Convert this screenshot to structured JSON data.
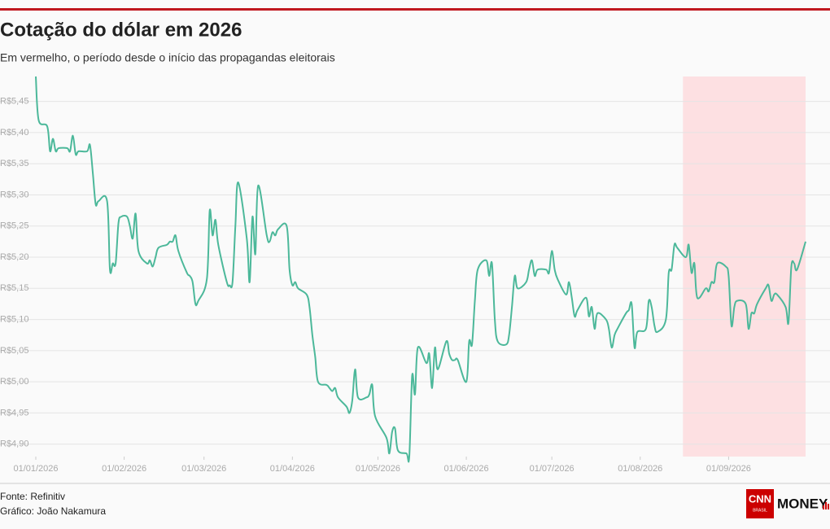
{
  "chart_data": {
    "type": "line",
    "title": "Cotação do dólar em 2026",
    "subtitle": "Em vermelho, o período desde o início das propagandas eleitorais",
    "x": [
      "2026-01-01",
      "2026-01-02",
      "2026-01-05",
      "2026-01-06",
      "2026-01-07",
      "2026-01-08",
      "2026-01-09",
      "2026-01-12",
      "2026-01-13",
      "2026-01-14",
      "2026-01-15",
      "2026-01-16",
      "2026-01-19",
      "2026-01-20",
      "2026-01-21",
      "2026-01-22",
      "2026-01-23",
      "2026-01-26",
      "2026-01-27",
      "2026-01-28",
      "2026-01-29",
      "2026-01-30",
      "2026-01-31",
      "2026-02-02",
      "2026-02-03",
      "2026-02-04",
      "2026-02-05",
      "2026-02-06",
      "2026-02-09",
      "2026-02-10",
      "2026-02-11",
      "2026-02-12",
      "2026-02-13",
      "2026-02-16",
      "2026-02-17",
      "2026-02-18",
      "2026-02-19",
      "2026-02-20",
      "2026-02-23",
      "2026-02-24",
      "2026-02-25",
      "2026-02-26",
      "2026-02-27",
      "2026-03-02",
      "2026-03-03",
      "2026-03-04",
      "2026-03-05",
      "2026-03-06",
      "2026-03-09",
      "2026-03-10",
      "2026-03-11",
      "2026-03-12",
      "2026-03-13",
      "2026-03-16",
      "2026-03-17",
      "2026-03-18",
      "2026-03-19",
      "2026-03-20",
      "2026-03-23",
      "2026-03-24",
      "2026-03-25",
      "2026-03-26",
      "2026-03-27",
      "2026-03-30",
      "2026-03-31",
      "2026-04-01",
      "2026-04-02",
      "2026-04-03",
      "2026-04-06",
      "2026-04-07",
      "2026-04-08",
      "2026-04-09",
      "2026-04-10",
      "2026-04-13",
      "2026-04-14",
      "2026-04-15",
      "2026-04-16",
      "2026-04-17",
      "2026-04-20",
      "2026-04-21",
      "2026-04-22",
      "2026-04-23",
      "2026-04-24",
      "2026-04-27",
      "2026-04-28",
      "2026-04-29",
      "2026-04-30",
      "2026-05-04",
      "2026-05-05",
      "2026-05-06",
      "2026-05-07",
      "2026-05-08",
      "2026-05-11",
      "2026-05-12",
      "2026-05-13",
      "2026-05-14",
      "2026-05-15",
      "2026-05-18",
      "2026-05-19",
      "2026-05-20",
      "2026-05-21",
      "2026-05-22",
      "2026-05-25",
      "2026-05-26",
      "2026-05-27",
      "2026-05-28",
      "2026-05-29",
      "2026-06-01",
      "2026-06-02",
      "2026-06-03",
      "2026-06-04",
      "2026-06-05",
      "2026-06-08",
      "2026-06-09",
      "2026-06-10",
      "2026-06-11",
      "2026-06-12",
      "2026-06-15",
      "2026-06-16",
      "2026-06-17",
      "2026-06-18",
      "2026-06-19",
      "2026-06-22",
      "2026-06-23",
      "2026-06-24",
      "2026-06-25",
      "2026-06-26",
      "2026-06-29",
      "2026-06-30",
      "2026-07-01",
      "2026-07-02",
      "2026-07-03",
      "2026-07-06",
      "2026-07-07",
      "2026-07-08",
      "2026-07-09",
      "2026-07-10",
      "2026-07-13",
      "2026-07-14",
      "2026-07-15",
      "2026-07-16",
      "2026-07-17",
      "2026-07-20",
      "2026-07-21",
      "2026-07-22",
      "2026-07-23",
      "2026-07-24",
      "2026-07-27",
      "2026-07-28",
      "2026-07-29",
      "2026-07-30",
      "2026-07-31",
      "2026-08-03",
      "2026-08-04",
      "2026-08-05",
      "2026-08-06",
      "2026-08-07",
      "2026-08-10",
      "2026-08-11",
      "2026-08-12",
      "2026-08-13",
      "2026-08-14",
      "2026-08-17",
      "2026-08-18",
      "2026-08-19",
      "2026-08-20",
      "2026-08-21",
      "2026-08-24",
      "2026-08-25",
      "2026-08-26",
      "2026-08-27",
      "2026-08-28",
      "2026-08-31",
      "2026-09-01",
      "2026-09-02",
      "2026-09-03",
      "2026-09-04",
      "2026-09-07",
      "2026-09-08",
      "2026-09-09",
      "2026-09-10",
      "2026-09-11",
      "2026-09-14",
      "2026-09-15",
      "2026-09-16",
      "2026-09-17",
      "2026-09-18",
      "2026-09-21",
      "2026-09-22",
      "2026-09-23",
      "2026-09-24",
      "2026-09-25",
      "2026-09-28"
    ],
    "series": [
      {
        "color": "#4cb89a",
        "values": [
          5.49,
          5.42,
          5.41,
          5.37,
          5.39,
          5.37,
          5.375,
          5.375,
          5.37,
          5.395,
          5.365,
          5.37,
          5.37,
          5.38,
          5.335,
          5.285,
          5.29,
          5.29,
          5.18,
          5.19,
          5.19,
          5.255,
          5.265,
          5.265,
          5.25,
          5.23,
          5.27,
          5.21,
          5.19,
          5.195,
          5.185,
          5.2,
          5.215,
          5.22,
          5.225,
          5.225,
          5.235,
          5.21,
          5.175,
          5.17,
          5.16,
          5.125,
          5.13,
          5.165,
          5.275,
          5.235,
          5.26,
          5.22,
          5.16,
          5.155,
          5.16,
          5.25,
          5.32,
          5.23,
          5.16,
          5.265,
          5.205,
          5.315,
          5.235,
          5.225,
          5.24,
          5.235,
          5.245,
          5.25,
          5.18,
          5.155,
          5.16,
          5.15,
          5.14,
          5.12,
          5.075,
          5.04,
          5.0,
          4.995,
          4.99,
          4.985,
          4.99,
          4.975,
          4.96,
          4.95,
          4.97,
          5.02,
          4.975,
          4.975,
          4.98,
          4.995,
          4.945,
          4.91,
          4.885,
          4.92,
          4.925,
          4.89,
          4.885,
          4.88,
          5.01,
          4.98,
          5.055,
          5.03,
          5.045,
          4.99,
          5.055,
          5.02,
          5.065,
          5.045,
          5.035,
          5.035,
          5.035,
          5.0,
          5.065,
          5.06,
          5.13,
          5.18,
          5.195,
          5.17,
          5.19,
          5.1,
          5.065,
          5.06,
          5.075,
          5.12,
          5.17,
          5.15,
          5.16,
          5.18,
          5.195,
          5.17,
          5.18,
          5.18,
          5.175,
          5.21,
          5.18,
          5.165,
          5.14,
          5.16,
          5.135,
          5.105,
          5.115,
          5.135,
          5.105,
          5.12,
          5.085,
          5.11,
          5.1,
          5.085,
          5.055,
          5.075,
          5.085,
          5.11,
          5.115,
          5.125,
          5.055,
          5.08,
          5.085,
          5.13,
          5.12,
          5.09,
          5.08,
          5.1,
          5.175,
          5.18,
          5.22,
          5.215,
          5.2,
          5.22,
          5.175,
          5.19,
          5.135,
          5.15,
          5.145,
          5.16,
          5.16,
          5.19,
          5.185,
          5.17,
          5.09,
          5.12,
          5.13,
          5.125,
          5.085,
          5.11,
          5.11,
          5.125,
          5.15,
          5.155,
          5.13,
          5.14,
          5.14,
          5.12,
          5.095,
          5.185,
          5.19,
          5.18,
          5.225
        ]
      }
    ],
    "xlim": [
      "2026-01-01",
      "2026-09-28"
    ],
    "xticks": [
      {
        "value": "2026-01-01",
        "label": "01/01/2026"
      },
      {
        "value": "2026-02-01",
        "label": "01/02/2026"
      },
      {
        "value": "2026-03-01",
        "label": "01/03/2026"
      },
      {
        "value": "2026-04-01",
        "label": "01/04/2026"
      },
      {
        "value": "2026-05-01",
        "label": "01/05/2026"
      },
      {
        "value": "2026-06-01",
        "label": "01/06/2026"
      },
      {
        "value": "2026-07-01",
        "label": "01/07/2026"
      },
      {
        "value": "2026-08-01",
        "label": "01/08/2026"
      },
      {
        "value": "2026-09-01",
        "label": "01/09/2026"
      }
    ],
    "ylim": [
      4.88,
      5.49
    ],
    "yticks": [
      {
        "value": 4.9,
        "label": "R$4,90"
      },
      {
        "value": 4.95,
        "label": "R$4,95"
      },
      {
        "value": 5.0,
        "label": "R$5,00"
      },
      {
        "value": 5.05,
        "label": "R$5,05"
      },
      {
        "value": 5.1,
        "label": "R$5,10"
      },
      {
        "value": 5.15,
        "label": "R$5,15"
      },
      {
        "value": 5.2,
        "label": "R$5,20"
      },
      {
        "value": 5.25,
        "label": "R$5,25"
      },
      {
        "value": 5.3,
        "label": "R$5,30"
      },
      {
        "value": 5.35,
        "label": "R$5,35"
      },
      {
        "value": 5.4,
        "label": "R$5,40"
      },
      {
        "value": 5.45,
        "label": "R$5,45"
      }
    ],
    "grid": true,
    "highlight": {
      "start": "2026-08-16",
      "end": "2026-09-28",
      "color": "#fde0e2"
    }
  },
  "footer": {
    "source": "Fonte: Refinitiv",
    "credit": "Gráfico: João Nakamura"
  },
  "logo": {
    "brand": "CNN",
    "sub": "BRASIL",
    "product": "MONEY"
  }
}
